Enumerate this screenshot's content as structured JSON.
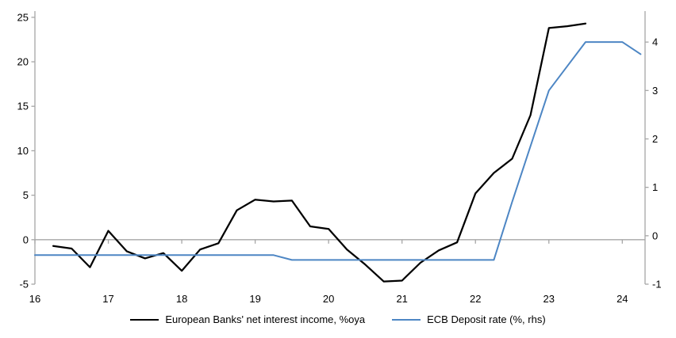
{
  "figure": {
    "background": "#FFFFFF"
  },
  "colors": {
    "series_black": "#000000",
    "series_blue": "#4D86C4",
    "axis_gray": "#A6A6A6",
    "text": "#000000"
  },
  "chart_data": {
    "type": "line",
    "legend_position": "bottom-center",
    "grid": "zero-baseline-only",
    "x_axis": {
      "ticks": [
        16,
        17,
        18,
        19,
        20,
        21,
        22,
        23,
        24
      ],
      "range": [
        16,
        24.31
      ],
      "tick_style": "short ticks below the zero baseline"
    },
    "left_axis": {
      "ticks": [
        25,
        20,
        15,
        10,
        5,
        0,
        -5
      ],
      "range": [
        -5,
        25.7
      ]
    },
    "right_axis": {
      "ticks": [
        4,
        3,
        2,
        1,
        0,
        -1
      ],
      "range": [
        -1,
        4.64
      ]
    },
    "series": [
      {
        "name": "European Banks' net interest income, %oya",
        "axis": "left",
        "color": "#000000",
        "stroke_width": 2.25,
        "x": [
          16.25,
          16.5,
          16.75,
          17.0,
          17.25,
          17.5,
          17.75,
          18.0,
          18.25,
          18.5,
          18.75,
          19.0,
          19.25,
          19.5,
          19.75,
          20.0,
          20.25,
          20.5,
          20.75,
          21.0,
          21.25,
          21.5,
          21.75,
          22.0,
          22.25,
          22.5,
          22.75,
          23.0,
          23.25,
          23.5
        ],
        "values": [
          -0.7,
          -1.0,
          -3.1,
          1.0,
          -1.3,
          -2.1,
          -1.5,
          -3.5,
          -1.1,
          -0.4,
          3.3,
          4.5,
          4.3,
          4.4,
          1.5,
          1.2,
          -1.1,
          -2.8,
          -4.7,
          -4.6,
          -2.6,
          -1.2,
          -0.3,
          5.2,
          7.5,
          9.1,
          14.0,
          23.8,
          24.0,
          24.3
        ]
      },
      {
        "name": "ECB Deposit rate (%, rhs)",
        "axis": "right",
        "color": "#4D86C4",
        "stroke_width": 2,
        "x": [
          16.0,
          16.25,
          16.5,
          16.75,
          17.0,
          17.25,
          17.5,
          17.75,
          18.0,
          18.25,
          18.5,
          18.75,
          19.0,
          19.25,
          19.5,
          19.75,
          20.0,
          20.25,
          20.5,
          20.75,
          21.0,
          21.25,
          21.5,
          21.75,
          22.0,
          22.25,
          22.5,
          22.75,
          23.0,
          23.25,
          23.5,
          23.75,
          24.0,
          24.25
        ],
        "values": [
          -0.4,
          -0.4,
          -0.4,
          -0.4,
          -0.4,
          -0.4,
          -0.4,
          -0.4,
          -0.4,
          -0.4,
          -0.4,
          -0.4,
          -0.4,
          -0.4,
          -0.5,
          -0.5,
          -0.5,
          -0.5,
          -0.5,
          -0.5,
          -0.5,
          -0.5,
          -0.5,
          -0.5,
          -0.5,
          -0.5,
          0.7,
          1.85,
          3.0,
          3.5,
          4.0,
          4.0,
          4.0,
          3.75
        ]
      }
    ]
  },
  "legend": {
    "items": [
      {
        "label": "European Banks' net interest income, %oya"
      },
      {
        "label": "ECB Deposit rate (%, rhs)"
      }
    ]
  }
}
